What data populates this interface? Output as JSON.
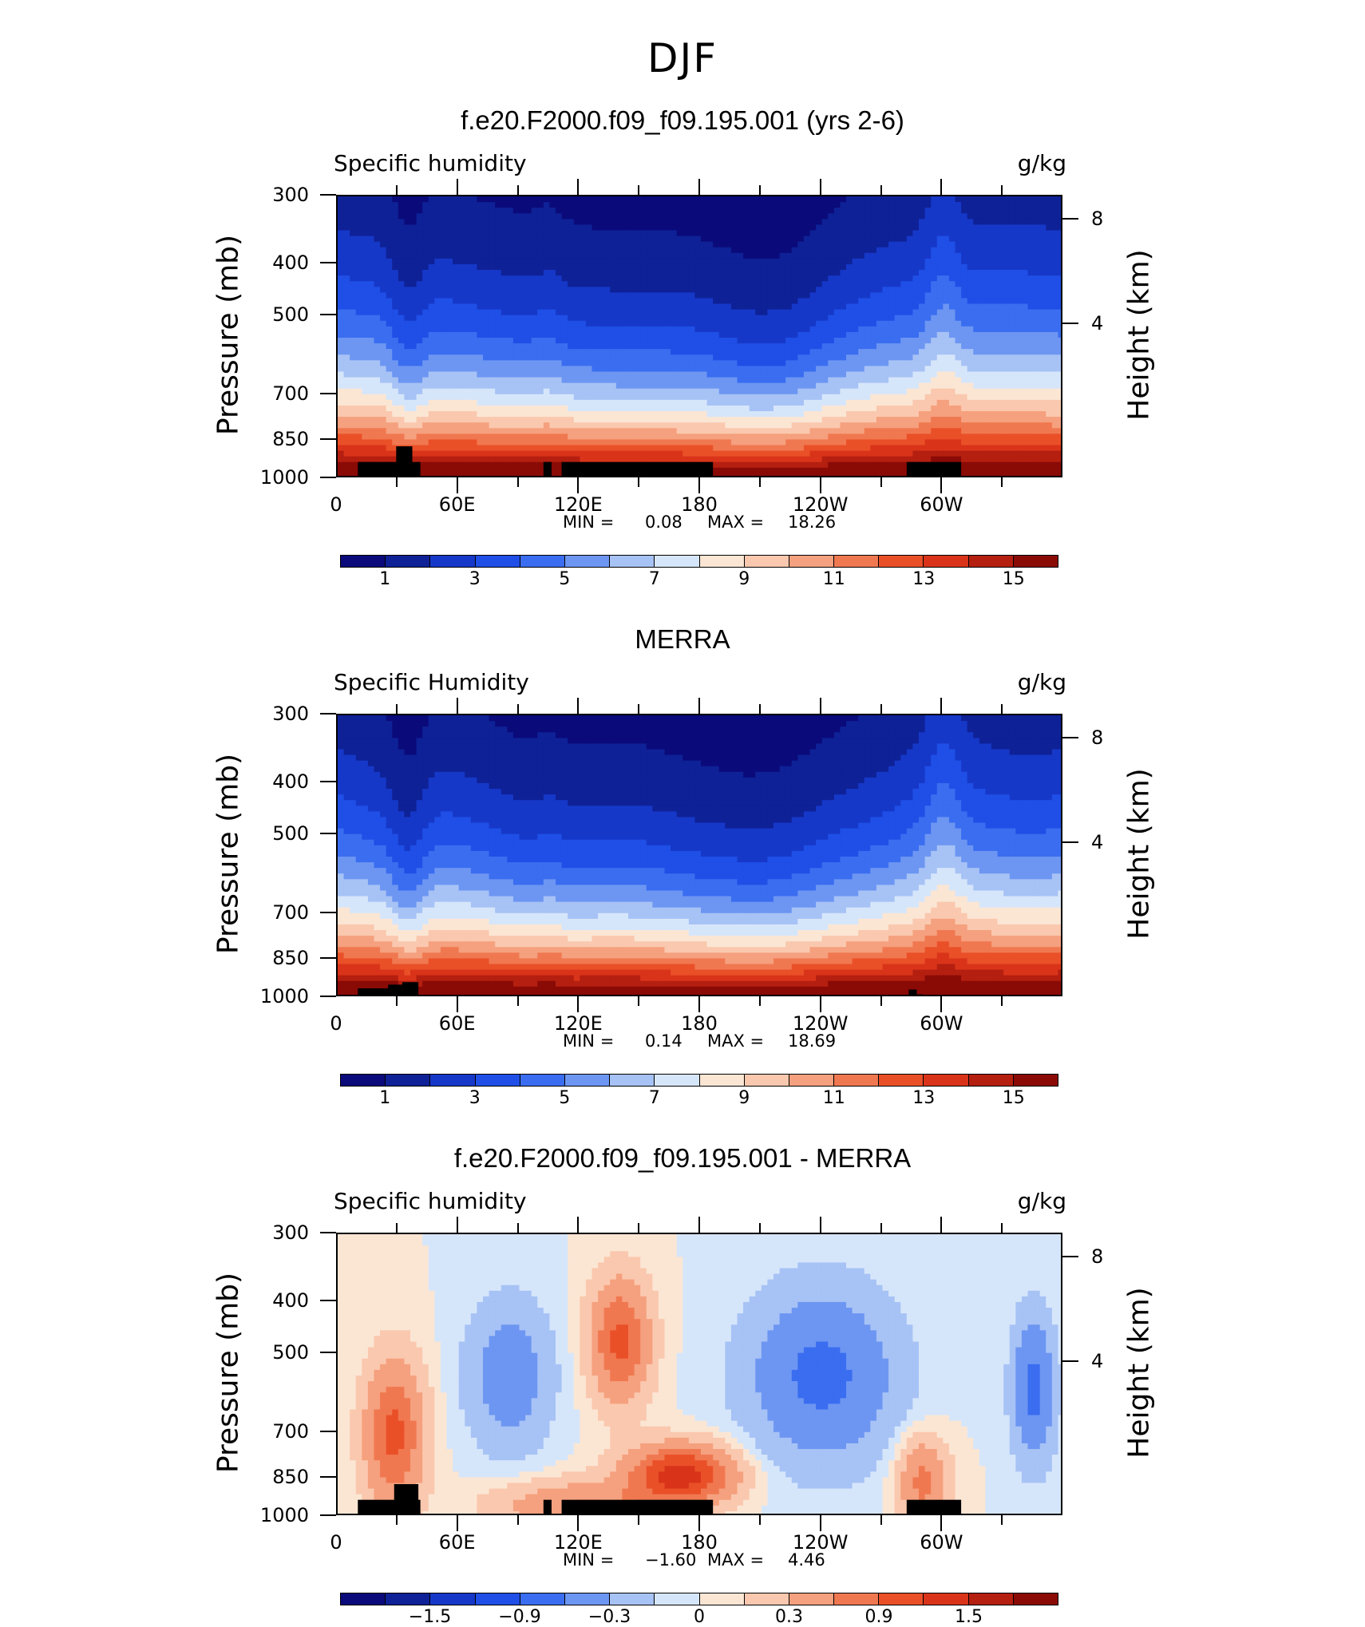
{
  "figure": {
    "title": "DJF"
  },
  "panels": [
    {
      "title": "f.e20.F2000.f09_f09.195.001 (yrs 2-6)",
      "var_label": "Specific humidity",
      "units": "g/kg",
      "min": "0.08",
      "max": "18.26",
      "field": "model",
      "colorbar_labels": [
        "1",
        "3",
        "5",
        "7",
        "9",
        "11",
        "13",
        "15"
      ]
    },
    {
      "title": "MERRA",
      "var_label": "Specific Humidity",
      "units": "g/kg",
      "min": "0.14",
      "max": "18.69",
      "field": "merra",
      "colorbar_labels": [
        "1",
        "3",
        "5",
        "7",
        "9",
        "11",
        "13",
        "15"
      ]
    },
    {
      "title": "f.e20.F2000.f09_f09.195.001 - MERRA",
      "var_label": "Specific humidity",
      "units": "g/kg",
      "min": "−1.60",
      "max": "4.46",
      "field": "diff",
      "colorbar_labels": [
        "−1.5",
        "−0.9",
        "−0.3",
        "0",
        "0.3",
        "0.9",
        "1.5"
      ]
    }
  ],
  "axes": {
    "ylabel": "Pressure (mb)",
    "y2label": "Height (km)",
    "pressure_ticks": [
      "300",
      "400",
      "500",
      "700",
      "850",
      "1000"
    ],
    "height_ticks": [
      "8",
      "4"
    ],
    "x_ticks": [
      "0",
      "60E",
      "120E",
      "180",
      "120W",
      "60W"
    ],
    "min_label": "MIN =",
    "max_label": "MAX ="
  },
  "colors": {
    "abs_palette": [
      "#0a0a7a",
      "#0e2196",
      "#1638c8",
      "#1f4fe6",
      "#3a6df0",
      "#6d96f2",
      "#a7c2f5",
      "#d6e6fa",
      "#fbe6d4",
      "#fac8ae",
      "#f5a07e",
      "#f07850",
      "#ea5028",
      "#d9341a",
      "#b41f10",
      "#8a0a06"
    ],
    "diff_palette": [
      "#0a0a7a",
      "#0e2196",
      "#1638c8",
      "#1f4fe6",
      "#3a6df0",
      "#6d96f2",
      "#a7c2f5",
      "#d6e6fa",
      "#fbe6d4",
      "#fac8ae",
      "#f5a07e",
      "#f07850",
      "#ea5028",
      "#d9341a",
      "#b41f10",
      "#8a0a06"
    ]
  },
  "chart_data": [
    {
      "type": "heatmap",
      "title": "f.e20.F2000.f09_f09.195.001 (yrs 2-6)",
      "subtitle": "Specific humidity",
      "units": "g/kg",
      "xlabel": "",
      "ylabel": "Pressure (mb)",
      "x_ticks": [
        "0",
        "60E",
        "120E",
        "180",
        "120W",
        "60W"
      ],
      "xlim": [
        0,
        360
      ],
      "ylim": [
        1000,
        300
      ],
      "y_scale": "log",
      "contour_levels": [
        1,
        2,
        3,
        4,
        5,
        6,
        7,
        8,
        9,
        10,
        11,
        12,
        13,
        14,
        15
      ],
      "min": 0.08,
      "max": 18.26
    },
    {
      "type": "heatmap",
      "title": "MERRA",
      "subtitle": "Specific Humidity",
      "units": "g/kg",
      "xlabel": "",
      "ylabel": "Pressure (mb)",
      "x_ticks": [
        "0",
        "60E",
        "120E",
        "180",
        "120W",
        "60W"
      ],
      "xlim": [
        0,
        360
      ],
      "ylim": [
        1000,
        300
      ],
      "y_scale": "log",
      "contour_levels": [
        1,
        2,
        3,
        4,
        5,
        6,
        7,
        8,
        9,
        10,
        11,
        12,
        13,
        14,
        15
      ],
      "min": 0.14,
      "max": 18.69
    },
    {
      "type": "heatmap",
      "title": "f.e20.F2000.f09_f09.195.001 - MERRA",
      "subtitle": "Specific humidity",
      "units": "g/kg",
      "xlabel": "",
      "ylabel": "Pressure (mb)",
      "x_ticks": [
        "0",
        "60E",
        "120E",
        "180",
        "120W",
        "60W"
      ],
      "xlim": [
        0,
        360
      ],
      "ylim": [
        1000,
        300
      ],
      "y_scale": "log",
      "contour_levels": [
        -1.8,
        -1.5,
        -1.2,
        -0.9,
        -0.6,
        -0.3,
        -0.1,
        0,
        0.1,
        0.3,
        0.6,
        0.9,
        1.2,
        1.5,
        1.8
      ],
      "min": -1.6,
      "max": 4.46
    }
  ]
}
